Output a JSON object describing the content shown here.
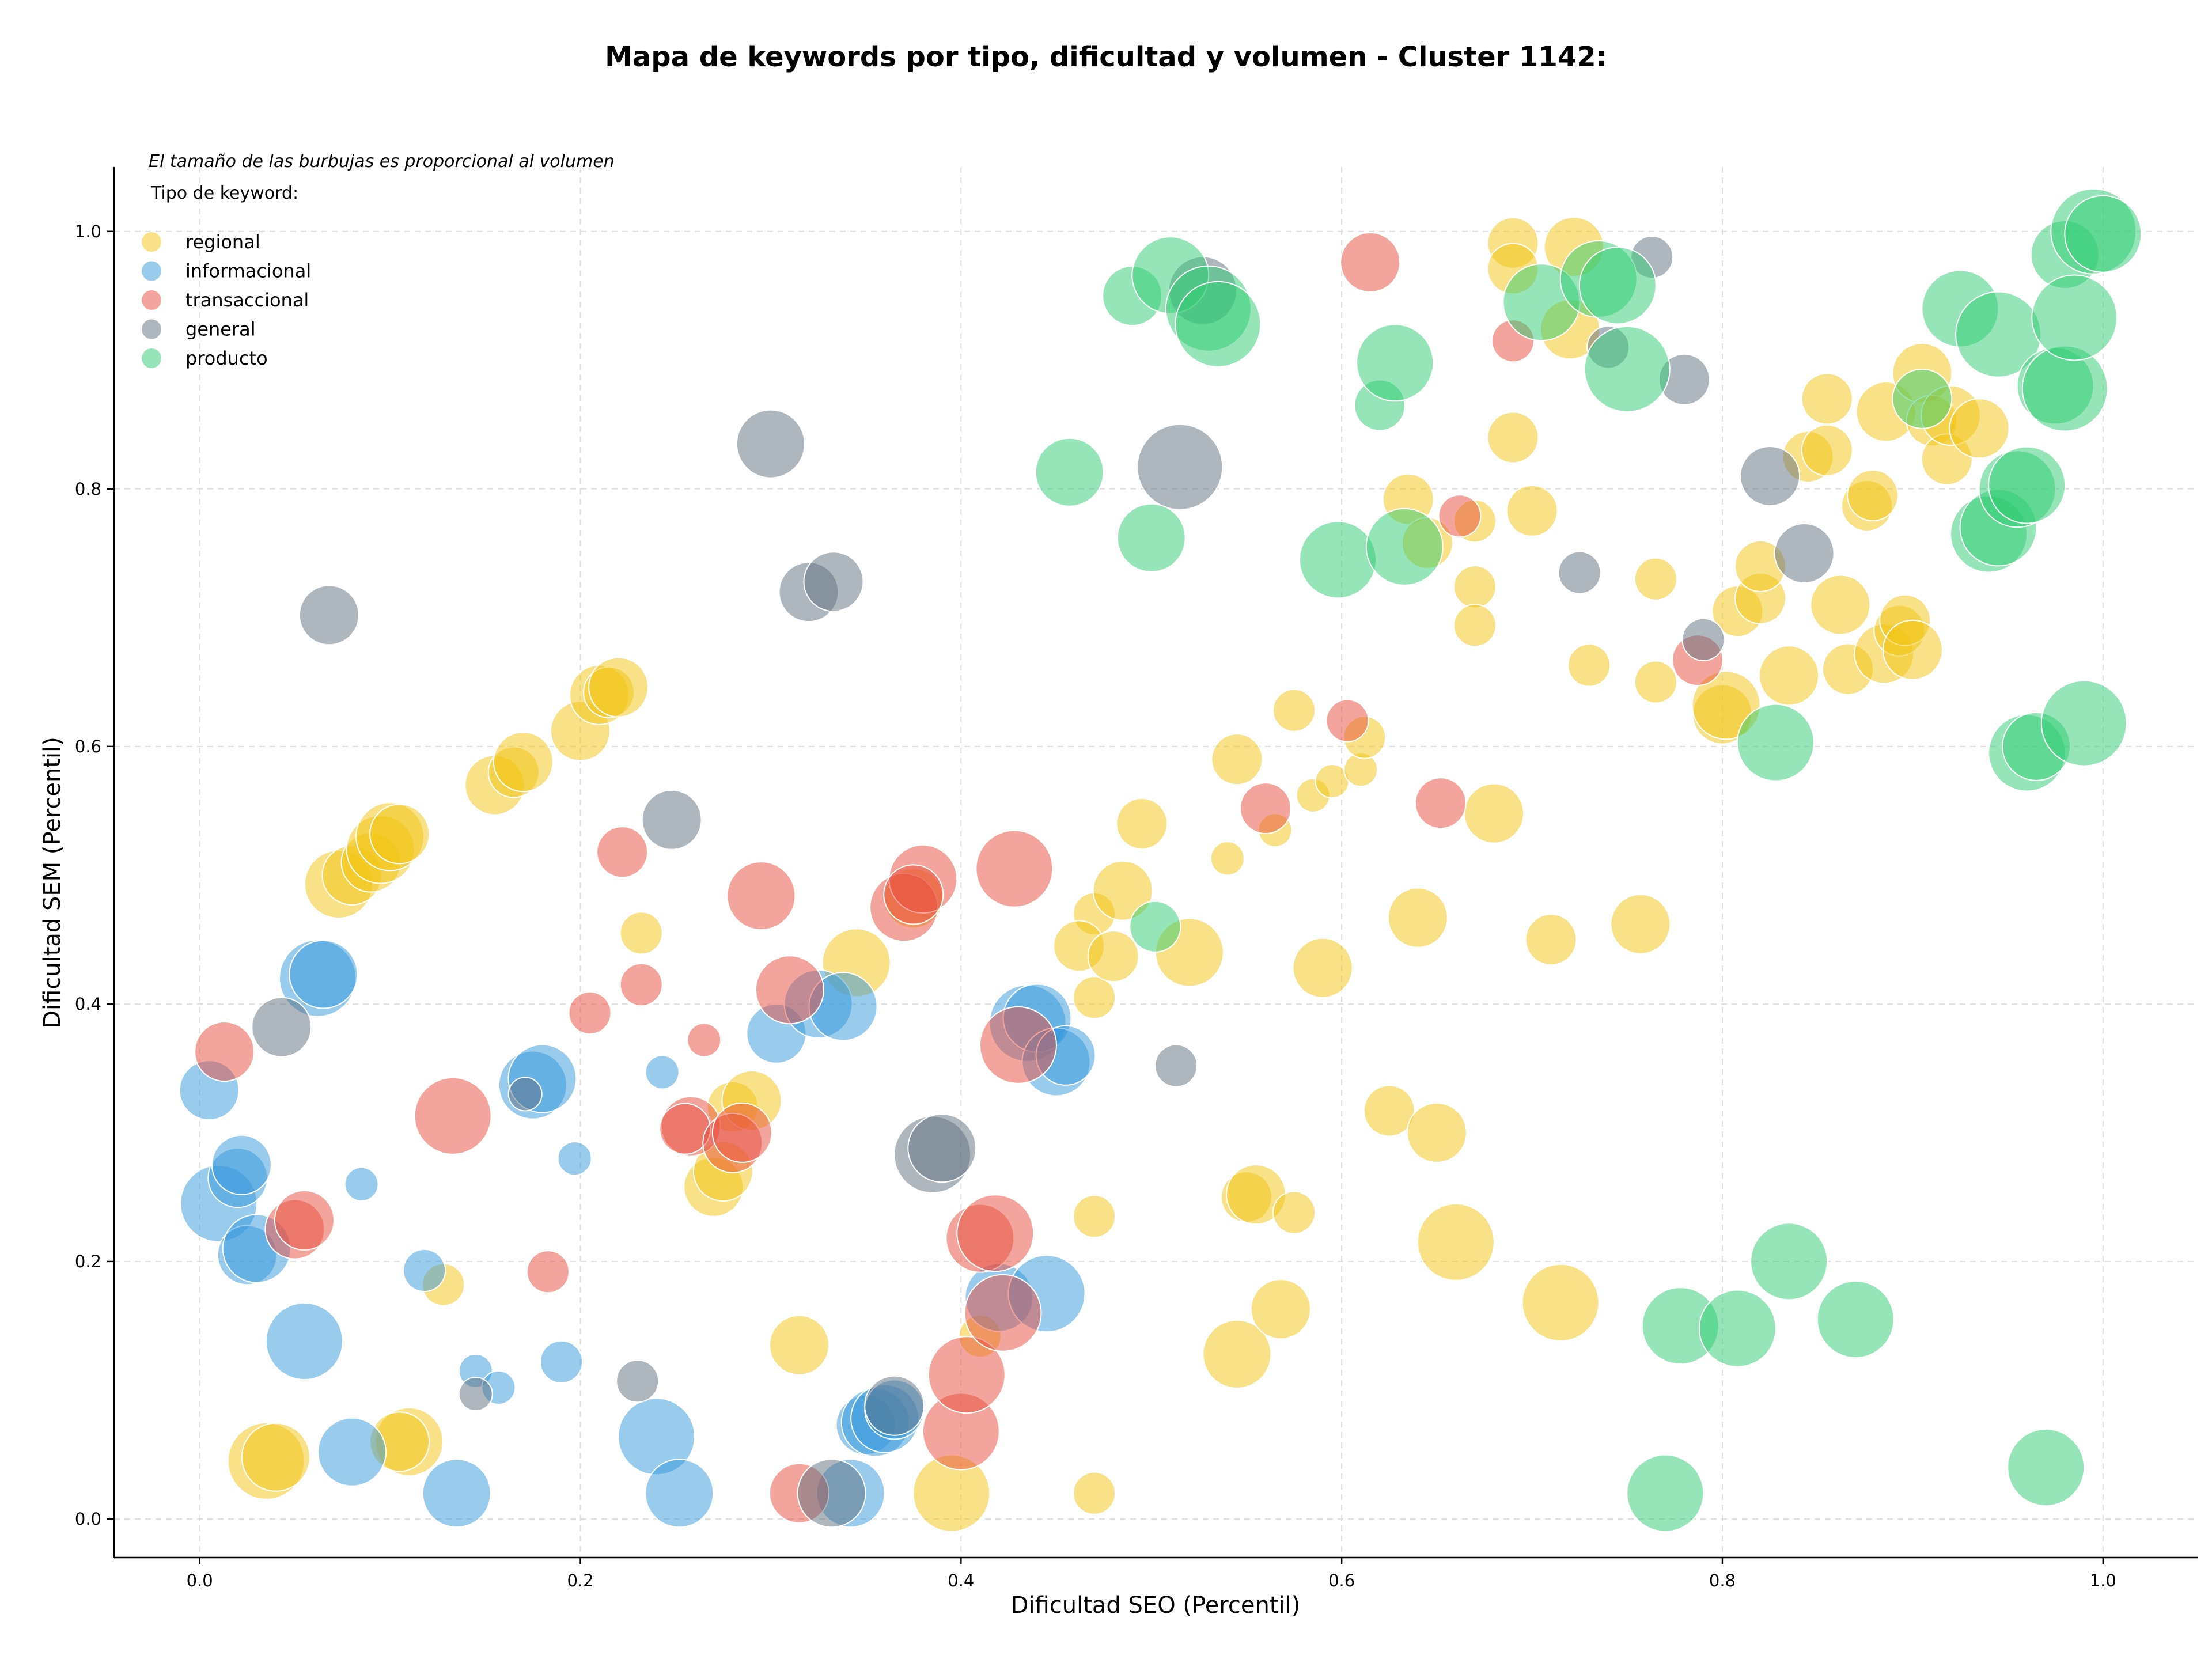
{
  "chart_data": {
    "type": "scatter",
    "title": "Mapa de keywords por tipo, dificultad y volumen - Cluster 1142:",
    "xlabel": "Dificultad SEO (Percentil)",
    "ylabel": "Dificultad SEM (Percentil)",
    "xlim": [
      -0.045,
      1.05
    ],
    "ylim": [
      -0.03,
      1.05
    ],
    "xticks": [
      "0.0",
      "0.2",
      "0.4",
      "0.6",
      "0.8",
      "1.0"
    ],
    "yticks": [
      "0.0",
      "0.2",
      "0.4",
      "0.6",
      "0.8",
      "1.0"
    ],
    "grid": true,
    "note": "El tamaño de las burbujas es proporcional al volumen",
    "legend_title": "Tipo de keyword:",
    "legend_position": "top-left",
    "size_encoding": "relative volume (1-10)",
    "series": [
      {
        "name": "regional",
        "color": "#f1c40f",
        "points": [
          [
            0.035,
            0.045,
            7
          ],
          [
            0.04,
            0.048,
            6
          ],
          [
            0.11,
            0.06,
            6
          ],
          [
            0.105,
            0.06,
            5
          ],
          [
            0.128,
            0.182,
            3
          ],
          [
            0.073,
            0.493,
            6
          ],
          [
            0.08,
            0.5,
            5
          ],
          [
            0.09,
            0.51,
            5
          ],
          [
            0.095,
            0.52,
            6
          ],
          [
            0.1,
            0.53,
            6
          ],
          [
            0.105,
            0.532,
            5
          ],
          [
            0.155,
            0.57,
            5
          ],
          [
            0.165,
            0.58,
            4
          ],
          [
            0.17,
            0.588,
            5
          ],
          [
            0.2,
            0.612,
            5
          ],
          [
            0.21,
            0.64,
            5
          ],
          [
            0.215,
            0.642,
            4
          ],
          [
            0.22,
            0.646,
            5
          ],
          [
            0.232,
            0.455,
            3
          ],
          [
            0.27,
            0.258,
            5
          ],
          [
            0.275,
            0.27,
            5
          ],
          [
            0.28,
            0.32,
            4
          ],
          [
            0.29,
            0.325,
            5
          ],
          [
            0.315,
            0.135,
            5
          ],
          [
            0.345,
            0.432,
            6
          ],
          [
            0.375,
            0.482,
            5
          ],
          [
            0.395,
            0.02,
            7
          ],
          [
            0.41,
            0.142,
            3
          ],
          [
            0.47,
            0.02,
            3
          ],
          [
            0.47,
            0.235,
            3
          ],
          [
            0.47,
            0.405,
            3
          ],
          [
            0.47,
            0.47,
            3
          ],
          [
            0.462,
            0.445,
            4
          ],
          [
            0.48,
            0.437,
            4
          ],
          [
            0.485,
            0.488,
            5
          ],
          [
            0.495,
            0.54,
            4
          ],
          [
            0.52,
            0.44,
            6
          ],
          [
            0.54,
            0.513,
            2
          ],
          [
            0.545,
            0.59,
            4
          ],
          [
            0.545,
            0.128,
            6
          ],
          [
            0.55,
            0.25,
            4
          ],
          [
            0.555,
            0.252,
            5
          ],
          [
            0.565,
            0.535,
            2
          ],
          [
            0.568,
            0.163,
            5
          ],
          [
            0.575,
            0.628,
            3
          ],
          [
            0.575,
            0.238,
            3
          ],
          [
            0.585,
            0.562,
            2
          ],
          [
            0.59,
            0.428,
            5
          ],
          [
            0.595,
            0.573,
            2
          ],
          [
            0.61,
            0.582,
            2
          ],
          [
            0.612,
            0.607,
            3
          ],
          [
            0.625,
            0.317,
            4
          ],
          [
            0.635,
            0.792,
            4
          ],
          [
            0.64,
            0.467,
            5
          ],
          [
            0.645,
            0.758,
            4
          ],
          [
            0.65,
            0.3,
            5
          ],
          [
            0.66,
            0.215,
            7
          ],
          [
            0.67,
            0.775,
            3
          ],
          [
            0.67,
            0.724,
            3
          ],
          [
            0.67,
            0.694,
            3
          ],
          [
            0.68,
            0.548,
            5
          ],
          [
            0.69,
            0.991,
            4
          ],
          [
            0.69,
            0.971,
            4
          ],
          [
            0.69,
            0.84,
            4
          ],
          [
            0.7,
            0.783,
            4
          ],
          [
            0.71,
            0.45,
            4
          ],
          [
            0.715,
            0.168,
            7
          ],
          [
            0.72,
            0.924,
            5
          ],
          [
            0.722,
            0.988,
            5
          ],
          [
            0.73,
            0.663,
            3
          ],
          [
            0.757,
            0.462,
            5
          ],
          [
            0.765,
            0.73,
            3
          ],
          [
            0.765,
            0.65,
            3
          ],
          [
            0.8,
            0.625,
            5
          ],
          [
            0.802,
            0.632,
            6
          ],
          [
            0.808,
            0.705,
            4
          ],
          [
            0.82,
            0.715,
            4
          ],
          [
            0.82,
            0.74,
            4
          ],
          [
            0.835,
            0.655,
            5
          ],
          [
            0.845,
            0.825,
            4
          ],
          [
            0.855,
            0.87,
            4
          ],
          [
            0.855,
            0.83,
            4
          ],
          [
            0.862,
            0.71,
            5
          ],
          [
            0.866,
            0.66,
            4
          ],
          [
            0.876,
            0.787,
            4
          ],
          [
            0.879,
            0.795,
            4
          ],
          [
            0.885,
            0.672,
            5
          ],
          [
            0.886,
            0.86,
            5
          ],
          [
            0.893,
            0.69,
            4
          ],
          [
            0.896,
            0.698,
            4
          ],
          [
            0.9,
            0.675,
            5
          ],
          [
            0.905,
            0.89,
            5
          ],
          [
            0.91,
            0.853,
            4
          ],
          [
            0.918,
            0.823,
            4
          ],
          [
            0.92,
            0.857,
            5
          ],
          [
            0.935,
            0.847,
            5
          ]
        ]
      },
      {
        "name": "informacional",
        "color": "#3498db",
        "points": [
          [
            0.005,
            0.333,
            5
          ],
          [
            0.01,
            0.245,
            7
          ],
          [
            0.02,
            0.265,
            5
          ],
          [
            0.022,
            0.275,
            5
          ],
          [
            0.025,
            0.205,
            5
          ],
          [
            0.03,
            0.21,
            6
          ],
          [
            0.055,
            0.138,
            7
          ],
          [
            0.062,
            0.42,
            7
          ],
          [
            0.065,
            0.423,
            6
          ],
          [
            0.08,
            0.052,
            6
          ],
          [
            0.085,
            0.26,
            2
          ],
          [
            0.118,
            0.193,
            3
          ],
          [
            0.135,
            0.02,
            6
          ],
          [
            0.145,
            0.115,
            2
          ],
          [
            0.157,
            0.102,
            2
          ],
          [
            0.175,
            0.337,
            6
          ],
          [
            0.18,
            0.342,
            6
          ],
          [
            0.19,
            0.122,
            3
          ],
          [
            0.197,
            0.28,
            2
          ],
          [
            0.24,
            0.064,
            7
          ],
          [
            0.243,
            0.347,
            2
          ],
          [
            0.252,
            0.02,
            6
          ],
          [
            0.303,
            0.377,
            5
          ],
          [
            0.325,
            0.4,
            6
          ],
          [
            0.338,
            0.398,
            6
          ],
          [
            0.342,
            0.02,
            6
          ],
          [
            0.35,
            0.073,
            5
          ],
          [
            0.355,
            0.075,
            6
          ],
          [
            0.36,
            0.078,
            6
          ],
          [
            0.365,
            0.085,
            5
          ],
          [
            0.42,
            0.172,
            6
          ],
          [
            0.435,
            0.385,
            7
          ],
          [
            0.44,
            0.389,
            6
          ],
          [
            0.445,
            0.175,
            7
          ],
          [
            0.45,
            0.355,
            6
          ],
          [
            0.455,
            0.36,
            5
          ]
        ]
      },
      {
        "name": "transaccional",
        "color": "#e74c3c",
        "points": [
          [
            0.013,
            0.363,
            5
          ],
          [
            0.05,
            0.225,
            5
          ],
          [
            0.055,
            0.232,
            5
          ],
          [
            0.133,
            0.313,
            7
          ],
          [
            0.183,
            0.192,
            3
          ],
          [
            0.205,
            0.393,
            3
          ],
          [
            0.222,
            0.518,
            4
          ],
          [
            0.232,
            0.415,
            3
          ],
          [
            0.265,
            0.372,
            2
          ],
          [
            0.258,
            0.305,
            5
          ],
          [
            0.255,
            0.303,
            4
          ],
          [
            0.28,
            0.292,
            5
          ],
          [
            0.285,
            0.3,
            5
          ],
          [
            0.295,
            0.484,
            6
          ],
          [
            0.31,
            0.411,
            6
          ],
          [
            0.315,
            0.02,
            5
          ],
          [
            0.37,
            0.475,
            6
          ],
          [
            0.38,
            0.497,
            6
          ],
          [
            0.375,
            0.485,
            5
          ],
          [
            0.4,
            0.068,
            7
          ],
          [
            0.403,
            0.112,
            7
          ],
          [
            0.41,
            0.218,
            6
          ],
          [
            0.418,
            0.222,
            7
          ],
          [
            0.422,
            0.16,
            7
          ],
          [
            0.428,
            0.505,
            7
          ],
          [
            0.43,
            0.368,
            7
          ],
          [
            0.615,
            0.976,
            5
          ],
          [
            0.603,
            0.62,
            3
          ],
          [
            0.56,
            0.552,
            4
          ],
          [
            0.652,
            0.556,
            4
          ],
          [
            0.662,
            0.779,
            3
          ],
          [
            0.69,
            0.915,
            3
          ],
          [
            0.787,
            0.667,
            4
          ]
        ]
      },
      {
        "name": "general",
        "color": "#5d6d7e",
        "points": [
          [
            0.043,
            0.382,
            5
          ],
          [
            0.068,
            0.702,
            5
          ],
          [
            0.145,
            0.097,
            2
          ],
          [
            0.171,
            0.33,
            2
          ],
          [
            0.23,
            0.107,
            3
          ],
          [
            0.248,
            0.543,
            5
          ],
          [
            0.3,
            0.835,
            6
          ],
          [
            0.32,
            0.72,
            5
          ],
          [
            0.333,
            0.728,
            5
          ],
          [
            0.332,
            0.02,
            6
          ],
          [
            0.365,
            0.088,
            5
          ],
          [
            0.385,
            0.283,
            7
          ],
          [
            0.39,
            0.288,
            6
          ],
          [
            0.513,
            0.352,
            3
          ],
          [
            0.515,
            0.817,
            8
          ],
          [
            0.527,
            0.954,
            6
          ],
          [
            0.725,
            0.735,
            3
          ],
          [
            0.74,
            0.91,
            3
          ],
          [
            0.763,
            0.98,
            3
          ],
          [
            0.78,
            0.885,
            4
          ],
          [
            0.79,
            0.683,
            3
          ],
          [
            0.825,
            0.81,
            5
          ],
          [
            0.843,
            0.75,
            5
          ]
        ]
      },
      {
        "name": "producto",
        "color": "#2ecc71",
        "points": [
          [
            0.457,
            0.813,
            6
          ],
          [
            0.49,
            0.95,
            5
          ],
          [
            0.5,
            0.762,
            6
          ],
          [
            0.502,
            0.46,
            4
          ],
          [
            0.51,
            0.966,
            7
          ],
          [
            0.53,
            0.94,
            8
          ],
          [
            0.535,
            0.928,
            8
          ],
          [
            0.598,
            0.745,
            7
          ],
          [
            0.62,
            0.865,
            4
          ],
          [
            0.628,
            0.898,
            7
          ],
          [
            0.633,
            0.755,
            7
          ],
          [
            0.705,
            0.945,
            7
          ],
          [
            0.735,
            0.963,
            7
          ],
          [
            0.745,
            0.958,
            7
          ],
          [
            0.75,
            0.893,
            8
          ],
          [
            0.77,
            0.02,
            7
          ],
          [
            0.778,
            0.15,
            7
          ],
          [
            0.808,
            0.148,
            7
          ],
          [
            0.828,
            0.603,
            7
          ],
          [
            0.835,
            0.2,
            7
          ],
          [
            0.87,
            0.155,
            7
          ],
          [
            0.905,
            0.87,
            5
          ],
          [
            0.925,
            0.94,
            7
          ],
          [
            0.945,
            0.92,
            8
          ],
          [
            0.94,
            0.765,
            7
          ],
          [
            0.945,
            0.77,
            7
          ],
          [
            0.955,
            0.8,
            7
          ],
          [
            0.96,
            0.803,
            7
          ],
          [
            0.96,
            0.595,
            7
          ],
          [
            0.965,
            0.6,
            6
          ],
          [
            0.97,
            0.04,
            7
          ],
          [
            0.975,
            0.88,
            7
          ],
          [
            0.98,
            0.878,
            8
          ],
          [
            0.98,
            0.982,
            6
          ],
          [
            0.985,
            0.933,
            8
          ],
          [
            0.99,
            0.618,
            8
          ],
          [
            0.995,
            1.0,
            8
          ],
          [
            1.0,
            0.998,
            7
          ]
        ]
      }
    ]
  }
}
